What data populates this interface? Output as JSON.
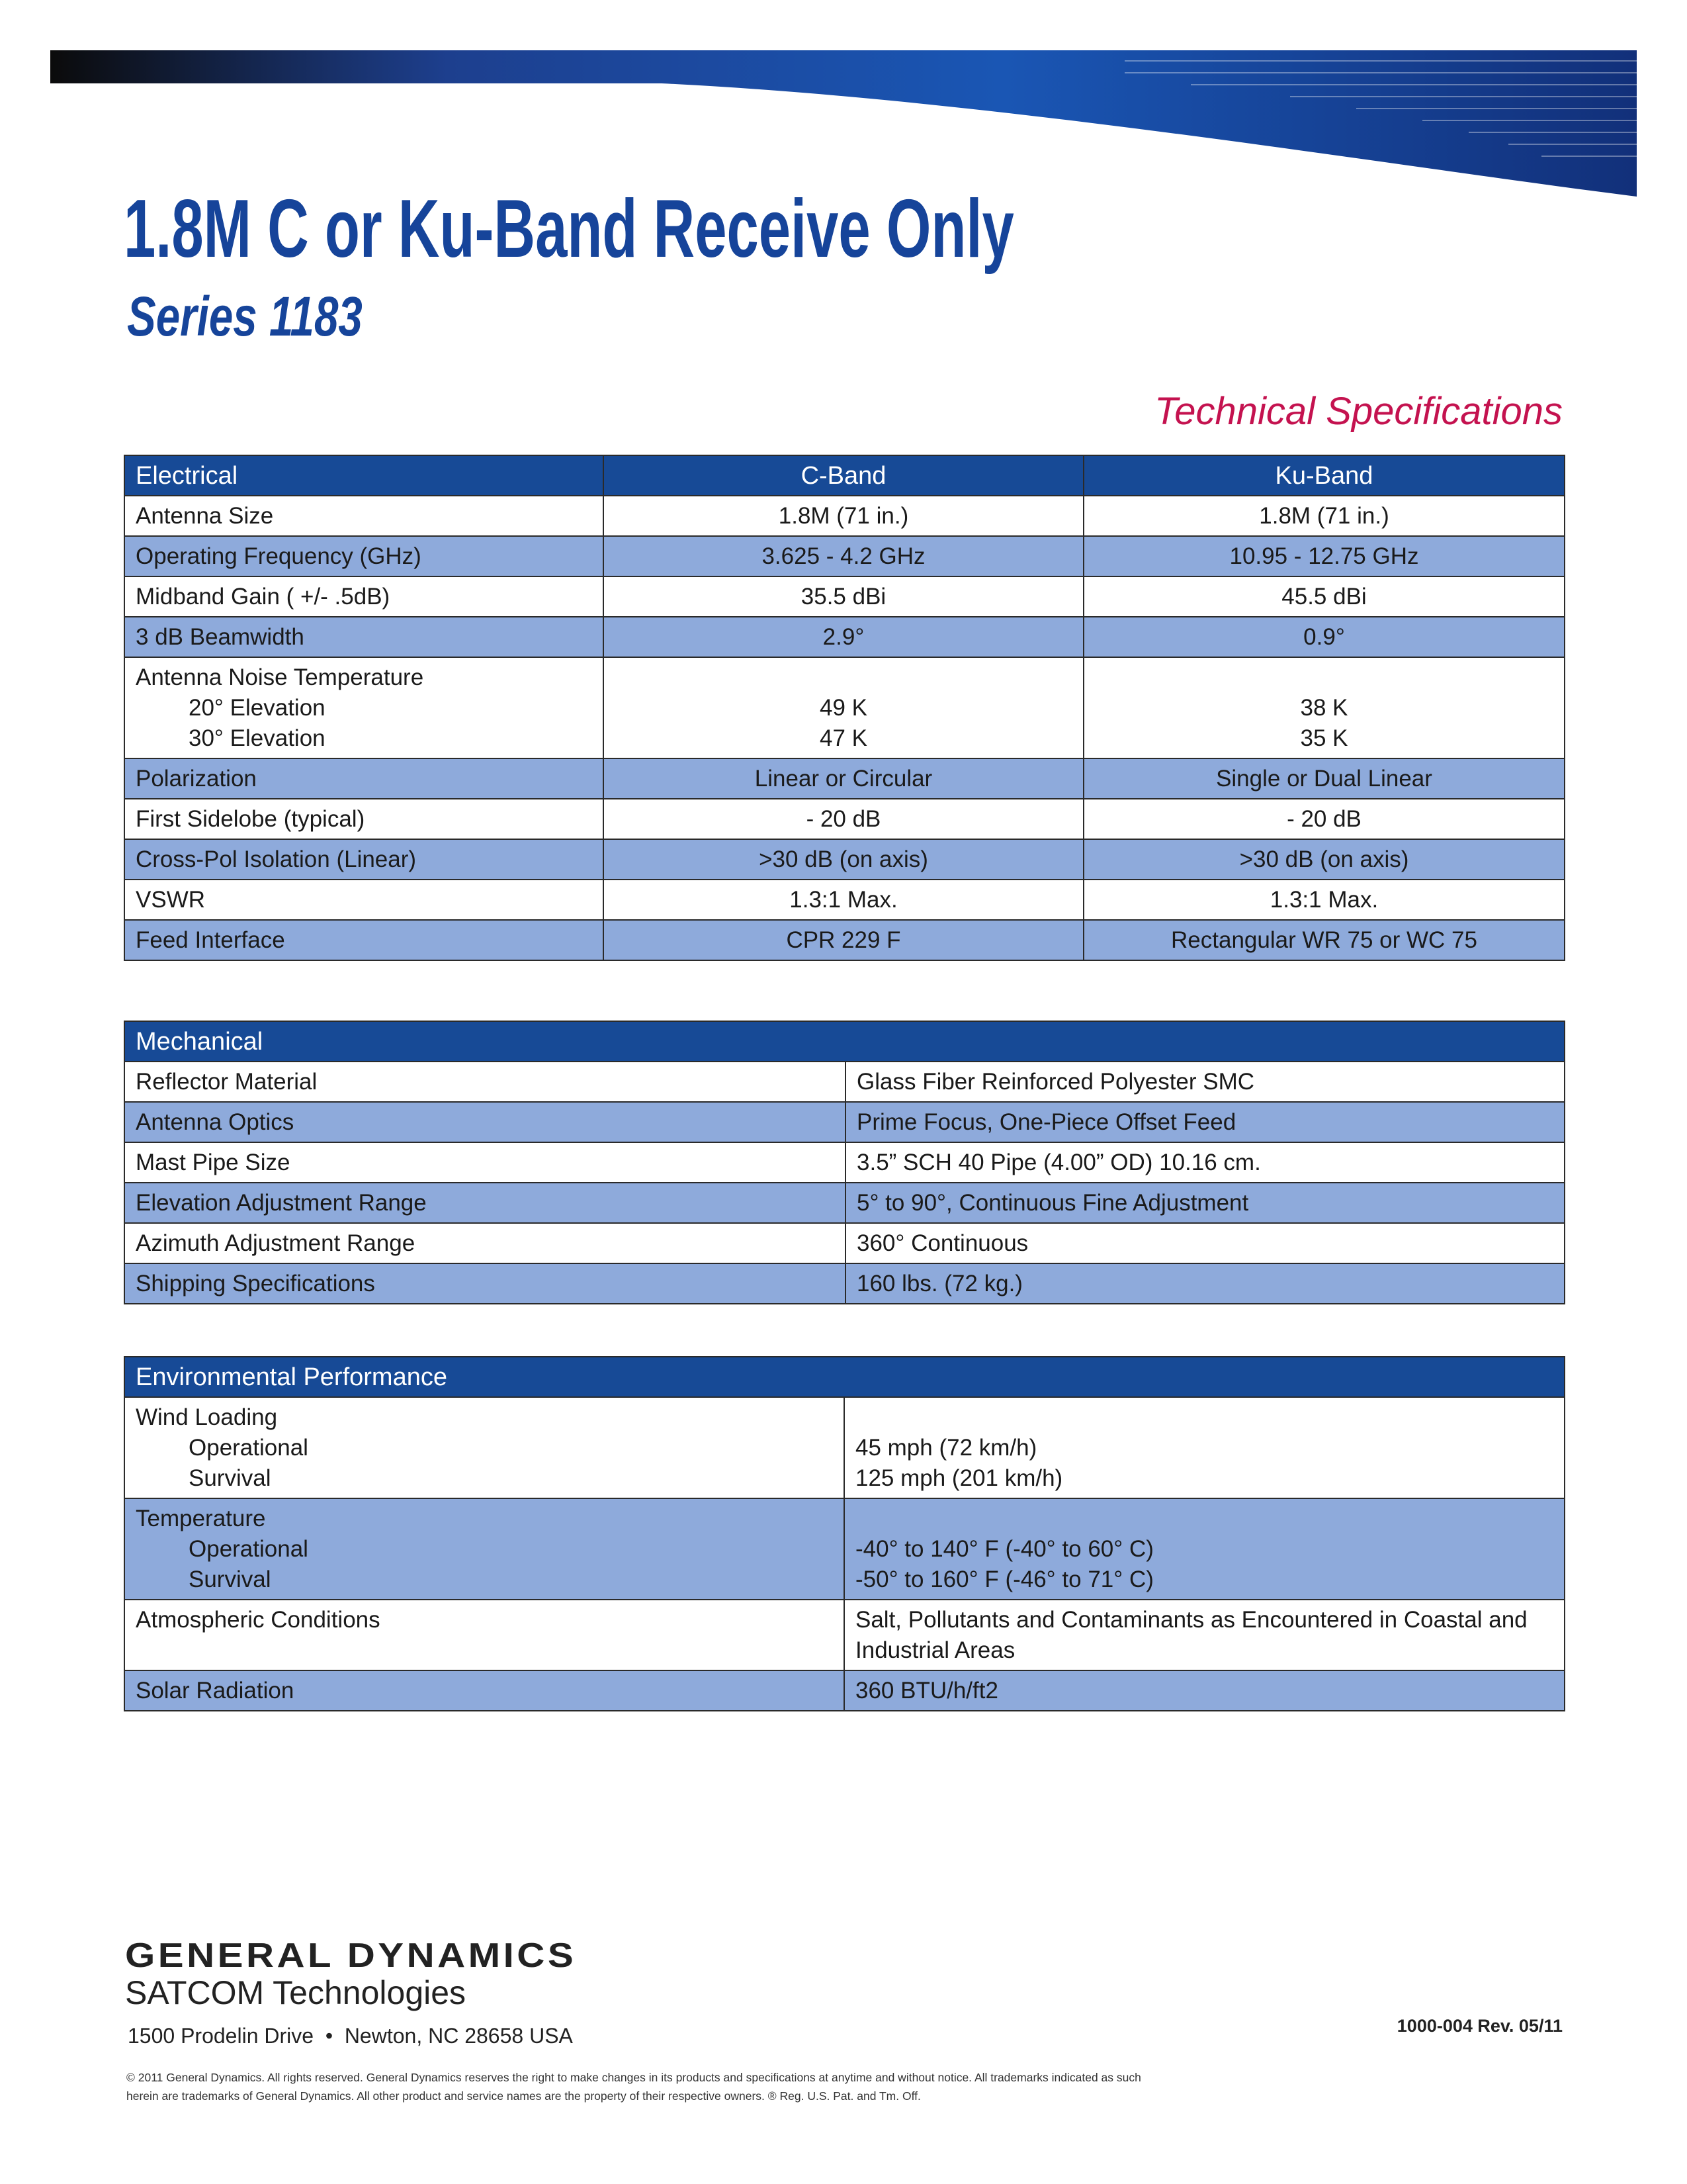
{
  "header": {
    "title": "1.8M C or Ku-Band Receive Only",
    "subtitle": "Series 1183",
    "section_label": "Technical Specifications"
  },
  "electrical": {
    "columns": [
      "Electrical",
      "C-Band",
      "Ku-Band"
    ],
    "rows": [
      {
        "label": "Antenna Size",
        "values": [
          "1.8M (71 in.)",
          "1.8M (71 in.)"
        ]
      },
      {
        "label": "Operating Frequency (GHz)",
        "values": [
          "3.625 - 4.2 GHz",
          "10.95 - 12.75 GHz"
        ]
      },
      {
        "label": "Midband Gain ( +/- .5dB)",
        "values": [
          "35.5 dBi",
          "45.5 dBi"
        ]
      },
      {
        "label": "3 dB Beamwidth",
        "values": [
          "2.9°",
          "0.9°"
        ]
      },
      {
        "label": "Antenna Noise Temperature",
        "sub": [
          {
            "label": "20° Elevation",
            "values": [
              "49 K",
              "38 K"
            ]
          },
          {
            "label": "30° Elevation",
            "values": [
              "47 K",
              "35 K"
            ]
          }
        ]
      },
      {
        "label": "Polarization",
        "values": [
          "Linear or Circular",
          "Single or Dual Linear"
        ]
      },
      {
        "label": "First Sidelobe (typical)",
        "values": [
          "- 20 dB",
          "- 20 dB"
        ]
      },
      {
        "label": "Cross-Pol Isolation (Linear)",
        "values": [
          ">30 dB (on axis)",
          ">30 dB (on axis)"
        ]
      },
      {
        "label": "VSWR",
        "values": [
          "1.3:1 Max.",
          "1.3:1 Max."
        ]
      },
      {
        "label": "Feed Interface",
        "values": [
          "CPR 229 F",
          "Rectangular WR 75 or WC 75"
        ]
      }
    ]
  },
  "mechanical": {
    "heading": "Mechanical",
    "rows": [
      {
        "label": "Reflector Material",
        "value": "Glass Fiber Reinforced Polyester SMC"
      },
      {
        "label": "Antenna Optics",
        "value": "Prime Focus, One-Piece Offset Feed"
      },
      {
        "label": "Mast Pipe Size",
        "value": "3.5” SCH 40 Pipe (4.00” OD) 10.16 cm."
      },
      {
        "label": "Elevation Adjustment Range",
        "value": "5° to 90°, Continuous Fine Adjustment"
      },
      {
        "label": "Azimuth Adjustment Range",
        "value": "360° Continuous"
      },
      {
        "label": "Shipping Specifications",
        "value": "160 lbs. (72 kg.)"
      }
    ]
  },
  "environmental": {
    "heading": "Environmental Performance",
    "rows": [
      {
        "label": "Wind Loading",
        "sub": [
          {
            "label": "Operational",
            "value": "45 mph (72 km/h)"
          },
          {
            "label": "Survival",
            "value": "125 mph (201 km/h)"
          }
        ]
      },
      {
        "label": "Temperature",
        "sub": [
          {
            "label": "Operational",
            "value": "-40° to 140° F (-40° to 60° C)"
          },
          {
            "label": "Survival",
            "value": "-50° to 160° F (-46° to 71° C)"
          }
        ]
      },
      {
        "label": "Atmospheric Conditions",
        "value": "Salt, Pollutants and Contaminants as Encountered in Coastal and Industrial Areas"
      },
      {
        "label": "Solar Radiation",
        "value": "360 BTU/h/ft2"
      }
    ]
  },
  "footer": {
    "company": "GENERAL DYNAMICS",
    "division": "SATCOM Technologies",
    "address": "1500 Prodelin Drive  •  Newton, NC 28658 USA",
    "doc_number": "1000-004 Rev. 05/11",
    "legal": "© 2011 General Dynamics. All rights reserved. General Dynamics reserves the right to make changes in its products and specifications at anytime and without notice.  All trademarks indicated as such herein are trademarks of General Dynamics. All other product and service names are the property of their respective owners. ® Reg. U.S. Pat. and Tm. Off."
  }
}
